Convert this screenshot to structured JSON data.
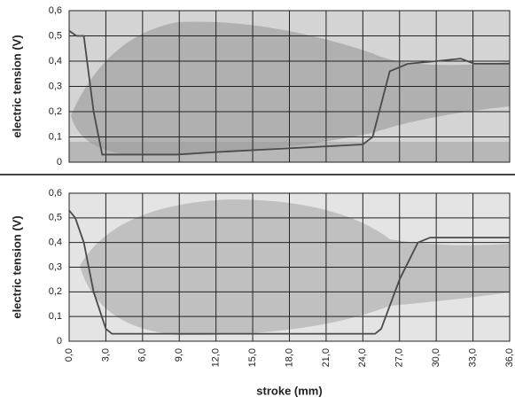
{
  "chart_data": [
    {
      "type": "line",
      "ylabel": "electric tension (V)",
      "xlim": [
        0,
        36
      ],
      "ylim": [
        0,
        0.6
      ],
      "yticks": [
        0,
        {
          "value": 0.1,
          "label": "0,1"
        },
        {
          "value": 0.2,
          "label": "0,2"
        },
        {
          "value": 0.3,
          "label": "0,3"
        },
        {
          "value": 0.4,
          "label": "0,4"
        },
        {
          "value": 0.5,
          "label": "0,5"
        },
        {
          "value": 0.6,
          "label": "0,6"
        }
      ],
      "grid": true,
      "series": [
        {
          "color": "#4a4a4a",
          "x": [
            0,
            0.6,
            1.2,
            2.0,
            2.7,
            5.0,
            8.8,
            12,
            16,
            20,
            24,
            24.8,
            26.2,
            27.7,
            30,
            32,
            33.1,
            36
          ],
          "values": [
            0.52,
            0.5,
            0.5,
            0.2,
            0.03,
            0.03,
            0.03,
            0.04,
            0.05,
            0.06,
            0.07,
            0.1,
            0.36,
            0.39,
            0.4,
            0.41,
            0.39,
            0.39
          ]
        }
      ]
    },
    {
      "type": "line",
      "ylabel": "electric tension (V)",
      "xlabel": "stroke (mm)",
      "xlim": [
        0,
        36
      ],
      "ylim": [
        0,
        0.6
      ],
      "xticks": [
        {
          "value": 0,
          "label": "0,0"
        },
        {
          "value": 3,
          "label": "3,0"
        },
        {
          "value": 6,
          "label": "6,0"
        },
        {
          "value": 9,
          "label": "9,0"
        },
        {
          "value": 12,
          "label": "12,0"
        },
        {
          "value": 15,
          "label": "15,0"
        },
        {
          "value": 18,
          "label": "18,0"
        },
        {
          "value": 21,
          "label": "21,0"
        },
        {
          "value": 24,
          "label": "24,0"
        },
        {
          "value": 27,
          "label": "27,0"
        },
        {
          "value": 30,
          "label": "30,0"
        },
        {
          "value": 33,
          "label": "33,0"
        },
        {
          "value": 36,
          "label": "36,0"
        }
      ],
      "yticks": [
        0,
        {
          "value": 0.1,
          "label": "0,1"
        },
        {
          "value": 0.2,
          "label": "0,2"
        },
        {
          "value": 0.3,
          "label": "0,3"
        },
        {
          "value": 0.4,
          "label": "0,4"
        },
        {
          "value": 0.5,
          "label": "0,5"
        },
        {
          "value": 0.6,
          "label": "0,6"
        }
      ],
      "grid": true,
      "series": [
        {
          "color": "#4a4a4a",
          "x": [
            0,
            0.5,
            1.2,
            2.0,
            3.0,
            3.5,
            8,
            14,
            20,
            25,
            25.5,
            27,
            28.5,
            29.5,
            33,
            36
          ],
          "values": [
            0.53,
            0.5,
            0.4,
            0.2,
            0.05,
            0.03,
            0.03,
            0.03,
            0.03,
            0.03,
            0.05,
            0.25,
            0.4,
            0.42,
            0.42,
            0.42
          ]
        }
      ]
    }
  ]
}
